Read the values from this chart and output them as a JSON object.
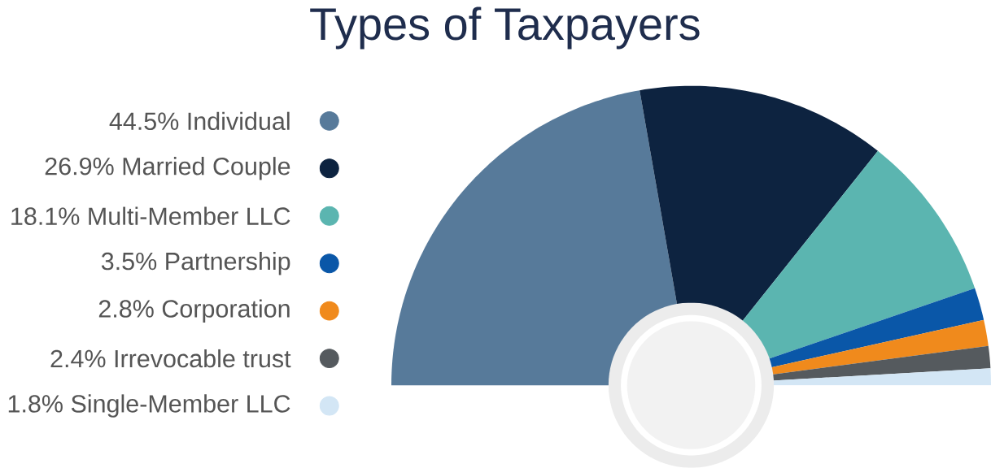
{
  "chart_data": {
    "type": "donut",
    "title": "Types of Taxpayers",
    "categories": [
      "Individual",
      "Married Couple",
      "Multi-Member LLC",
      "Partnership",
      "Corporation",
      "Irrevocable trust",
      "Single-Member LLC"
    ],
    "values": [
      44.5,
      26.9,
      18.1,
      3.5,
      2.8,
      2.4,
      1.8
    ],
    "value_labels": [
      "44.5%",
      "26.9%",
      "18.1%",
      "3.5%",
      "2.8%",
      "2.4%",
      "1.8%"
    ],
    "colors": [
      "#577a9a",
      "#0d2340",
      "#5bb5b0",
      "#0a57a8",
      "#f08a1c",
      "#555a5e",
      "#d3e6f5"
    ],
    "legend": "left"
  }
}
